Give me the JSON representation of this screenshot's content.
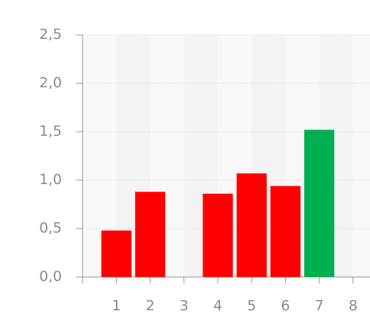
{
  "chart_data": {
    "type": "bar",
    "x": [
      1,
      2,
      4,
      5,
      6,
      7
    ],
    "values": [
      0.48,
      0.88,
      0.86,
      1.07,
      0.94,
      1.52
    ],
    "colors": [
      "#ff0000",
      "#ff0000",
      "#ff0000",
      "#ff0000",
      "#ff0000",
      "#00b050"
    ],
    "xlim": [
      0,
      8.5
    ],
    "xticks": [
      1,
      2,
      3,
      4,
      5,
      6,
      7,
      8
    ],
    "ylim": [
      0,
      2.5
    ],
    "yticks": [
      {
        "value": 0,
        "label": "0,0"
      },
      {
        "value": 0.5,
        "label": "0,5"
      },
      {
        "value": 1,
        "label": "1,0"
      },
      {
        "value": 1.5,
        "label": "1,5"
      },
      {
        "value": 2,
        "label": "2,0"
      },
      {
        "value": 2.5,
        "label": "2,5"
      }
    ],
    "grid": true
  }
}
